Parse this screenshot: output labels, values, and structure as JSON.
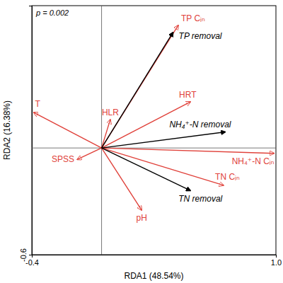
{
  "chart_data": {
    "type": "biplot",
    "annotation": "p = 0.002",
    "x_label": "RDA1 (48.54%)",
    "y_label": "RDA2 (16.38%)",
    "xlim": [
      -0.4,
      1.0
    ],
    "ylim": [
      -0.6,
      0.8
    ],
    "xticks": [
      -0.4,
      {
        "value": 1.0,
        "label": "1.0"
      }
    ],
    "yticks": [
      -0.6
    ],
    "series": [
      {
        "color": "#e0413a",
        "labels": [
          "TP Cᵢₙ",
          "T",
          "HLR",
          "HRT",
          "NH₄⁺-N Cᵢₙ",
          "TN Cᵢₙ",
          "SPSS",
          "pH"
        ],
        "x": [
          0.44,
          -0.39,
          0.05,
          0.51,
          0.99,
          0.7,
          -0.14,
          0.23
        ],
        "values": [
          0.69,
          0.2,
          0.16,
          0.26,
          -0.03,
          -0.21,
          -0.065,
          -0.35
        ]
      },
      {
        "color": "#000000",
        "labels": [
          "TP removal",
          "NH₄⁺-N removal",
          "TN removal"
        ],
        "x": [
          0.41,
          0.71,
          0.51
        ],
        "values": [
          0.65,
          0.09,
          -0.24
        ]
      }
    ]
  }
}
